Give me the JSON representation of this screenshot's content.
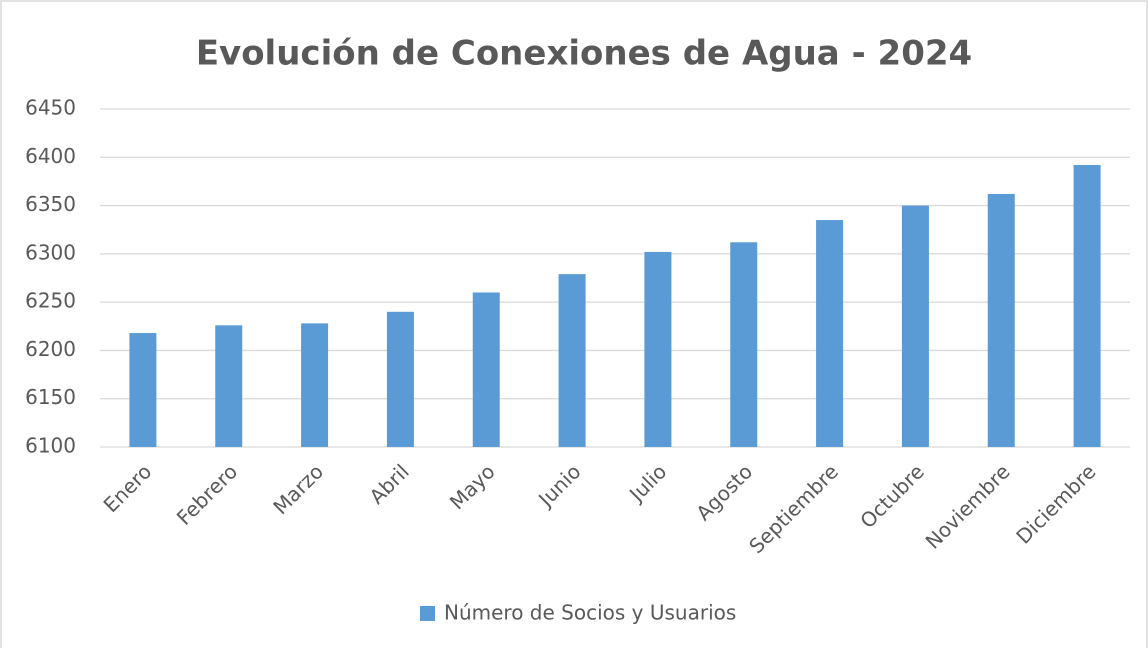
{
  "chart_data": {
    "type": "bar",
    "title": "Evolución de Conexiones de Agua - 2024",
    "categories": [
      "Enero",
      "Febrero",
      "Marzo",
      "Abril",
      "Mayo",
      "Junio",
      "Julio",
      "Agosto",
      "Septiembre",
      "Octubre",
      "Noviembre",
      "Diciembre"
    ],
    "series": [
      {
        "name": "Número de Socios y Usuarios",
        "color": "#5b9bd5",
        "values": [
          6218,
          6226,
          6228,
          6240,
          6260,
          6279,
          6302,
          6312,
          6335,
          6350,
          6362,
          6392
        ]
      }
    ],
    "ylim": [
      6100,
      6450
    ],
    "yticks": [
      6100,
      6150,
      6200,
      6250,
      6300,
      6350,
      6400,
      6450
    ],
    "grid": true,
    "legend": "bottom"
  }
}
